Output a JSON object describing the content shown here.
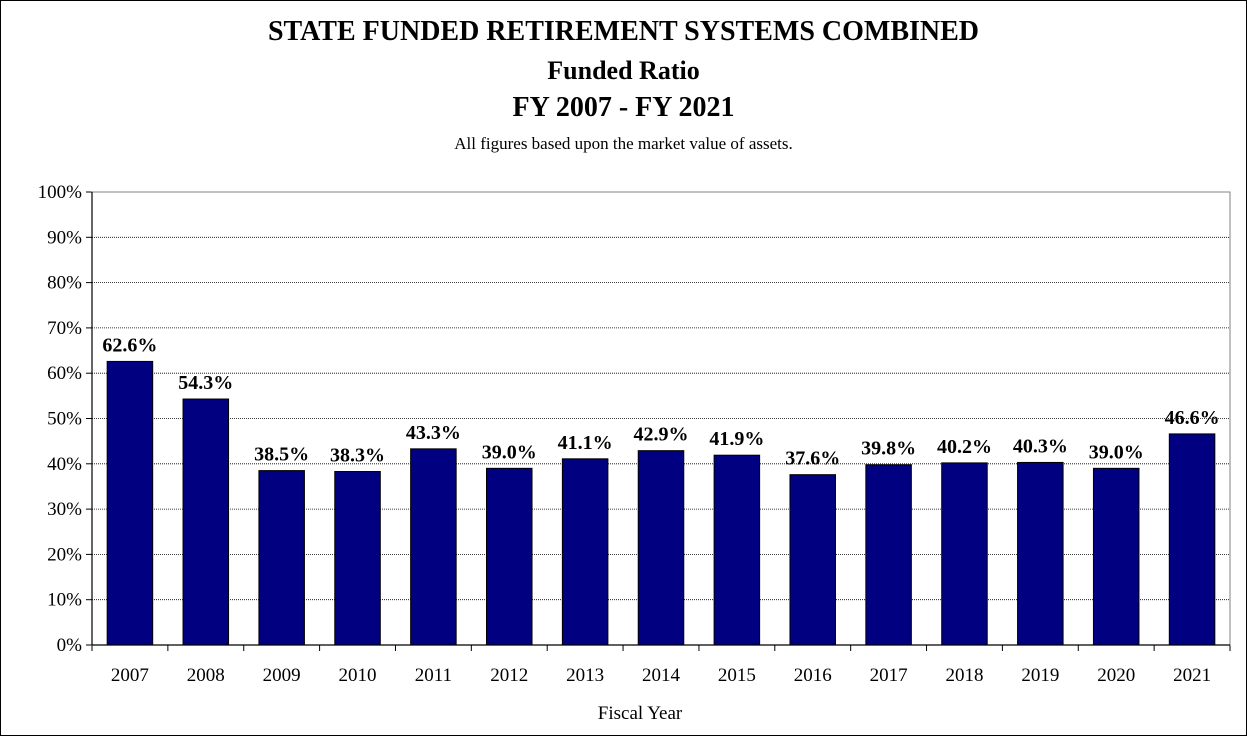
{
  "chart_data": {
    "type": "bar",
    "title": "STATE FUNDED RETIREMENT SYSTEMS COMBINED",
    "subtitle_lines": [
      "Funded Ratio",
      "FY 2007 - FY 2021"
    ],
    "note": "All figures based upon the market value of assets.",
    "xlabel": "Fiscal Year",
    "ylabel": "",
    "ylim": [
      0,
      100
    ],
    "yticks": [
      "0%",
      "10%",
      "20%",
      "30%",
      "40%",
      "50%",
      "60%",
      "70%",
      "80%",
      "90%",
      "100%"
    ],
    "categories": [
      "2007",
      "2008",
      "2009",
      "2010",
      "2011",
      "2012",
      "2013",
      "2014",
      "2015",
      "2016",
      "2017",
      "2018",
      "2019",
      "2020",
      "2021"
    ],
    "values": [
      62.6,
      54.3,
      38.5,
      38.3,
      43.3,
      39.0,
      41.1,
      42.9,
      41.9,
      37.6,
      39.8,
      40.2,
      40.3,
      39.0,
      46.6
    ],
    "data_labels": [
      "62.6%",
      "54.3%",
      "38.5%",
      "38.3%",
      "43.3%",
      "39.0%",
      "41.1%",
      "42.9%",
      "41.9%",
      "37.6%",
      "39.8%",
      "40.2%",
      "40.3%",
      "39.0%",
      "46.6%"
    ],
    "grid": true,
    "legend": "none",
    "colors": {
      "bar": "#000080",
      "bar_outline": "#000000",
      "grid": "#000000"
    }
  }
}
